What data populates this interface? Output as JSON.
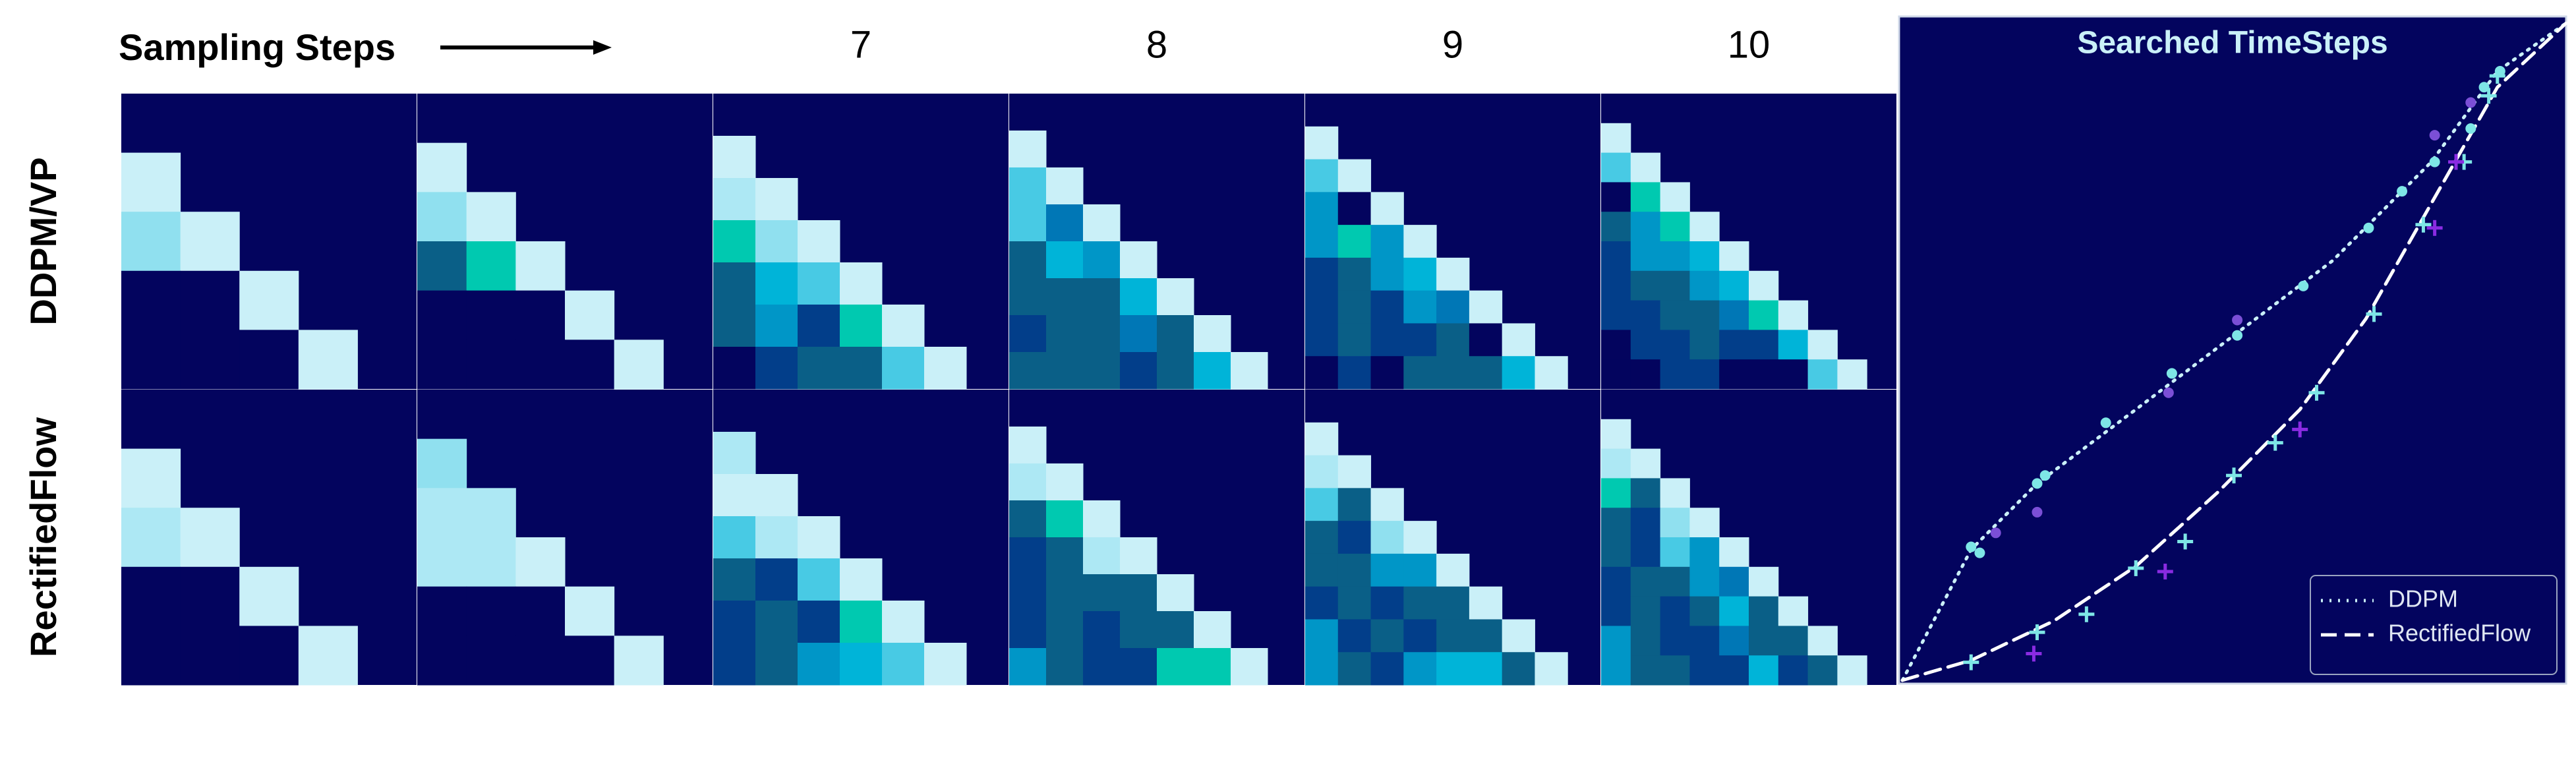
{
  "header": {
    "title": "Sampling Steps",
    "steps": [
      null,
      null,
      7,
      8,
      9,
      10
    ]
  },
  "heatmaps": {
    "background": "#03045e",
    "rows": [
      {
        "label": "DDPM/VP",
        "panels": [
          [
            [
              "#caf0f8"
            ],
            [
              "#90e0ef",
              "#caf0f8"
            ],
            [
              "#03045e",
              "#03045e",
              "#caf0f8"
            ],
            [
              "#03045e",
              "#03045e",
              "#03045e",
              "#caf0f8"
            ]
          ],
          [
            [
              "#caf0f8"
            ],
            [
              "#90e0ef",
              "#caf0f8"
            ],
            [
              "#0a5f87",
              "#00c9b0",
              "#caf0f8"
            ],
            [
              "#03045e",
              "#03045e",
              "#03045e",
              "#caf0f8"
            ],
            [
              "#03045e",
              "#03045e",
              "#03045e",
              "#03045e",
              "#caf0f8"
            ]
          ],
          [
            [
              "#caf0f8"
            ],
            [
              "#ade8f4",
              "#caf0f8"
            ],
            [
              "#00c9b0",
              "#90e0ef",
              "#caf0f8"
            ],
            [
              "#0a5f87",
              "#00b4d8",
              "#48cae4",
              "#caf0f8"
            ],
            [
              "#0a5f87",
              "#0096c7",
              "#023e8a",
              "#00c9b0",
              "#caf0f8"
            ],
            [
              "#03045e",
              "#023e8a",
              "#0a5f87",
              "#0a5f87",
              "#48cae4",
              "#caf0f8"
            ]
          ],
          [
            [
              "#caf0f8"
            ],
            [
              "#48cae4",
              "#caf0f8"
            ],
            [
              "#48cae4",
              "#0077b6",
              "#caf0f8"
            ],
            [
              "#0a5f87",
              "#00b4d8",
              "#0096c7",
              "#caf0f8"
            ],
            [
              "#0a5f87",
              "#0a5f87",
              "#0a5f87",
              "#00b4d8",
              "#caf0f8"
            ],
            [
              "#023e8a",
              "#0a5f87",
              "#0a5f87",
              "#0077b6",
              "#0a5f87",
              "#caf0f8"
            ],
            [
              "#0a5f87",
              "#0a5f87",
              "#0a5f87",
              "#023e8a",
              "#0a5f87",
              "#00b4d8",
              "#caf0f8"
            ]
          ],
          [
            [
              "#caf0f8"
            ],
            [
              "#48cae4",
              "#caf0f8"
            ],
            [
              "#0096c7",
              "#03045e",
              "#caf0f8"
            ],
            [
              "#0096c7",
              "#00c9b0",
              "#0096c7",
              "#caf0f8"
            ],
            [
              "#023e8a",
              "#0a5f87",
              "#0096c7",
              "#00b4d8",
              "#caf0f8"
            ],
            [
              "#023e8a",
              "#0a5f87",
              "#023e8a",
              "#0096c7",
              "#0077b6",
              "#caf0f8"
            ],
            [
              "#023e8a",
              "#0a5f87",
              "#023e8a",
              "#023e8a",
              "#0a5f87",
              "#03045e",
              "#caf0f8"
            ],
            [
              "#03045e",
              "#023e8a",
              "#03045e",
              "#0a5f87",
              "#0a5f87",
              "#0a5f87",
              "#00b4d8",
              "#caf0f8"
            ]
          ],
          [
            [
              "#caf0f8"
            ],
            [
              "#48cae4",
              "#caf0f8"
            ],
            [
              "#03045e",
              "#00c9b0",
              "#caf0f8"
            ],
            [
              "#0a5f87",
              "#0096c7",
              "#00c9b0",
              "#caf0f8"
            ],
            [
              "#023e8a",
              "#0096c7",
              "#0096c7",
              "#00b4d8",
              "#caf0f8"
            ],
            [
              "#023e8a",
              "#0a5f87",
              "#0a5f87",
              "#0096c7",
              "#00b4d8",
              "#caf0f8"
            ],
            [
              "#023e8a",
              "#023e8a",
              "#0a5f87",
              "#0a5f87",
              "#0077b6",
              "#00c9b0",
              "#caf0f8"
            ],
            [
              "#03045e",
              "#023e8a",
              "#023e8a",
              "#0a5f87",
              "#023e8a",
              "#023e8a",
              "#00b4d8",
              "#caf0f8"
            ],
            [
              "#03045e",
              "#03045e",
              "#023e8a",
              "#023e8a",
              "#03045e",
              "#03045e",
              "#03045e",
              "#48cae4",
              "#caf0f8"
            ]
          ]
        ]
      },
      {
        "label": "RectifiedFlow",
        "panels": [
          [
            [
              "#caf0f8"
            ],
            [
              "#ade8f4",
              "#caf0f8"
            ],
            [
              "#03045e",
              "#03045e",
              "#caf0f8"
            ],
            [
              "#03045e",
              "#03045e",
              "#03045e",
              "#caf0f8"
            ]
          ],
          [
            [
              "#90e0ef"
            ],
            [
              "#ade8f4",
              "#ade8f4"
            ],
            [
              "#ade8f4",
              "#ade8f4",
              "#caf0f8"
            ],
            [
              "#03045e",
              "#03045e",
              "#03045e",
              "#caf0f8"
            ],
            [
              "#03045e",
              "#03045e",
              "#03045e",
              "#03045e",
              "#caf0f8"
            ]
          ],
          [
            [
              "#ade8f4"
            ],
            [
              "#caf0f8",
              "#caf0f8"
            ],
            [
              "#48cae4",
              "#ade8f4",
              "#caf0f8"
            ],
            [
              "#0a5f87",
              "#023e8a",
              "#48cae4",
              "#caf0f8"
            ],
            [
              "#023e8a",
              "#0a5f87",
              "#023e8a",
              "#00c9b0",
              "#caf0f8"
            ],
            [
              "#023e8a",
              "#0a5f87",
              "#0096c7",
              "#00b4d8",
              "#48cae4",
              "#caf0f8"
            ]
          ],
          [
            [
              "#caf0f8"
            ],
            [
              "#ade8f4",
              "#caf0f8"
            ],
            [
              "#0a5f87",
              "#00c9b0",
              "#caf0f8"
            ],
            [
              "#023e8a",
              "#0a5f87",
              "#ade8f4",
              "#caf0f8"
            ],
            [
              "#023e8a",
              "#0a5f87",
              "#0a5f87",
              "#0a5f87",
              "#caf0f8"
            ],
            [
              "#023e8a",
              "#0a5f87",
              "#023e8a",
              "#0a5f87",
              "#0a5f87",
              "#caf0f8"
            ],
            [
              "#0096c7",
              "#0a5f87",
              "#023e8a",
              "#023e8a",
              "#00c9b0",
              "#00c9b0",
              "#caf0f8"
            ]
          ],
          [
            [
              "#caf0f8"
            ],
            [
              "#ade8f4",
              "#caf0f8"
            ],
            [
              "#48cae4",
              "#0a5f87",
              "#caf0f8"
            ],
            [
              "#0a5f87",
              "#023e8a",
              "#90e0ef",
              "#caf0f8"
            ],
            [
              "#0a5f87",
              "#0a5f87",
              "#0096c7",
              "#0096c7",
              "#caf0f8"
            ],
            [
              "#023e8a",
              "#0a5f87",
              "#023e8a",
              "#0a5f87",
              "#0a5f87",
              "#caf0f8"
            ],
            [
              "#0096c7",
              "#023e8a",
              "#0a5f87",
              "#023e8a",
              "#0a5f87",
              "#0a5f87",
              "#caf0f8"
            ],
            [
              "#0096c7",
              "#0a5f87",
              "#023e8a",
              "#0096c7",
              "#00b4d8",
              "#00b4d8",
              "#0a5f87",
              "#caf0f8"
            ]
          ],
          [
            [
              "#caf0f8"
            ],
            [
              "#ade8f4",
              "#caf0f8"
            ],
            [
              "#00c9b0",
              "#0a5f87",
              "#caf0f8"
            ],
            [
              "#0a5f87",
              "#023e8a",
              "#90e0ef",
              "#caf0f8"
            ],
            [
              "#0a5f87",
              "#023e8a",
              "#48cae4",
              "#0096c7",
              "#caf0f8"
            ],
            [
              "#023e8a",
              "#0a5f87",
              "#0a5f87",
              "#0096c7",
              "#0077b6",
              "#caf0f8"
            ],
            [
              "#023e8a",
              "#0a5f87",
              "#023e8a",
              "#0a5f87",
              "#00b4d8",
              "#0a5f87",
              "#caf0f8"
            ],
            [
              "#0096c7",
              "#0a5f87",
              "#023e8a",
              "#023e8a",
              "#0077b6",
              "#0a5f87",
              "#0a5f87",
              "#caf0f8"
            ],
            [
              "#0096c7",
              "#0a5f87",
              "#0a5f87",
              "#023e8a",
              "#023e8a",
              "#00b4d8",
              "#023e8a",
              "#0a5f87",
              "#caf0f8"
            ]
          ]
        ]
      }
    ]
  },
  "chart_data": {
    "type": "line",
    "title": "Searched TimeSteps",
    "background": "#03045e",
    "xlim": [
      0,
      1
    ],
    "ylim": [
      0,
      1
    ],
    "legend": "lower right",
    "series": [
      {
        "name": "DDPM",
        "color": "#caf0f8",
        "style": "dotted",
        "x": [
          0.005,
          0.108,
          0.207,
          0.355,
          0.502,
          0.65,
          0.798,
          0.897,
          1
        ],
        "y": [
          0.005,
          0.201,
          0.3,
          0.411,
          0.522,
          0.634,
          0.782,
          0.918,
          0.99
        ]
      },
      {
        "name": "RectifiedFlow",
        "color": "#ffffff",
        "style": "dashed",
        "x": [
          0.005,
          0.108,
          0.232,
          0.355,
          0.478,
          0.601,
          0.7,
          0.798,
          0.897,
          1
        ],
        "y": [
          0.005,
          0.035,
          0.094,
          0.176,
          0.287,
          0.411,
          0.547,
          0.72,
          0.894,
          0.99
        ]
      },
      {
        "marker": "dot",
        "color": "#7ee6e6",
        "x": [
          0.108,
          0.121,
          0.207,
          0.219,
          0.31,
          0.409,
          0.507,
          0.606,
          0.704,
          0.754,
          0.803,
          0.857,
          0.877,
          0.901
        ],
        "y": [
          0.205,
          0.196,
          0.3,
          0.312,
          0.391,
          0.465,
          0.522,
          0.596,
          0.683,
          0.738,
          0.782,
          0.832,
          0.894,
          0.918
        ]
      },
      {
        "marker": "dot",
        "color": "#7b4fd6",
        "x": [
          0.145,
          0.207,
          0.404,
          0.507,
          0.803,
          0.857
        ],
        "y": [
          0.226,
          0.257,
          0.436,
          0.545,
          0.822,
          0.871
        ]
      },
      {
        "marker": "plus",
        "color": "#7ee6e6",
        "x": [
          0.108,
          0.207,
          0.281,
          0.355,
          0.429,
          0.502,
          0.564,
          0.626,
          0.712,
          0.786,
          0.847,
          0.884,
          0.897
        ],
        "y": [
          0.032,
          0.077,
          0.104,
          0.173,
          0.213,
          0.312,
          0.361,
          0.436,
          0.554,
          0.688,
          0.782,
          0.881,
          0.911
        ]
      },
      {
        "marker": "plus",
        "color": "#8a2be2",
        "x": [
          0.202,
          0.399,
          0.601,
          0.803,
          0.835
        ],
        "y": [
          0.045,
          0.168,
          0.381,
          0.683,
          0.782
        ]
      }
    ]
  }
}
